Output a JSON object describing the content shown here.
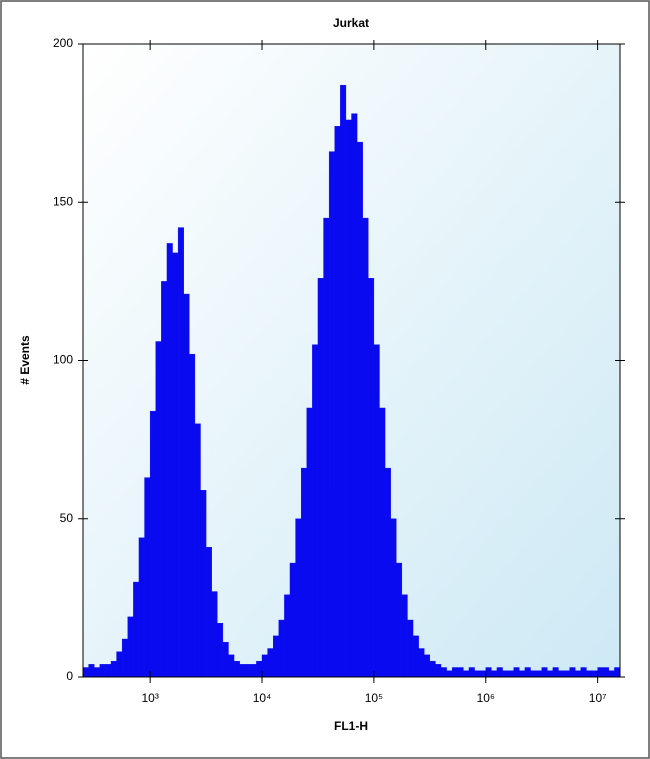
{
  "chart_data": {
    "type": "histogram",
    "title": "Jurkat",
    "x_label": "FL1-H",
    "y_label": "# Events",
    "xscale": "log",
    "color": "#0a0af0",
    "bins": [
      251,
      282,
      316,
      355,
      398,
      447,
      501,
      562,
      631,
      708,
      794,
      891,
      1000,
      1122,
      1259,
      1413,
      1585,
      1778,
      1995,
      2239,
      2512,
      2818,
      3162,
      3548,
      3981,
      4467,
      5012,
      5623,
      6310,
      7079,
      7943,
      8913,
      10000,
      11220,
      12590,
      14130,
      15850,
      17780,
      19950,
      22390,
      25120,
      28180,
      31620,
      35480,
      39810,
      44670,
      50120,
      56230,
      63100,
      70790,
      79430,
      89130,
      100000,
      112200,
      125900,
      141300,
      158500,
      177800,
      199500,
      223900,
      251200,
      281800,
      316200,
      354800,
      398100,
      446700,
      501200,
      562300,
      631000,
      707900,
      794300,
      891300,
      1000000,
      1122000,
      1259000,
      1413000,
      1585000,
      1778000,
      1995000,
      2239000,
      2512000,
      2818000,
      3162000,
      3548000,
      3981000,
      4467000,
      5012000,
      5623000,
      6310000,
      7079000,
      7943000,
      8913000,
      10000000,
      11220000,
      12590000,
      14130000,
      15850000
    ],
    "values": [
      3,
      4,
      3,
      4,
      4,
      5,
      8,
      12,
      19,
      30,
      44,
      63,
      84,
      106,
      125,
      137,
      134,
      142,
      121,
      102,
      80,
      59,
      41,
      27,
      17,
      11,
      7,
      5,
      4,
      4,
      4,
      5,
      7,
      9,
      13,
      18,
      26,
      36,
      50,
      66,
      85,
      105,
      126,
      145,
      166,
      174,
      187,
      176,
      178,
      169,
      145,
      126,
      105,
      85,
      66,
      50,
      36,
      26,
      18,
      13,
      9,
      7,
      5,
      4,
      3,
      2,
      3,
      3,
      2,
      3,
      2,
      2,
      3,
      2,
      3,
      2,
      2,
      3,
      2,
      3,
      2,
      2,
      3,
      2,
      3,
      2,
      2,
      3,
      2,
      3,
      2,
      2,
      3,
      3,
      2,
      3
    ],
    "xlim": [
      251,
      15850000
    ],
    "xticks": [
      {
        "value": 1000,
        "label": "10³"
      },
      {
        "value": 10000,
        "label": "10⁴"
      },
      {
        "value": 100000,
        "label": "10⁵"
      },
      {
        "value": 1000000,
        "label": "10⁶"
      },
      {
        "value": 10000000,
        "label": "10⁷"
      }
    ],
    "ylim": [
      0,
      200
    ],
    "yticks": [
      0,
      50,
      100,
      150,
      200
    ]
  }
}
